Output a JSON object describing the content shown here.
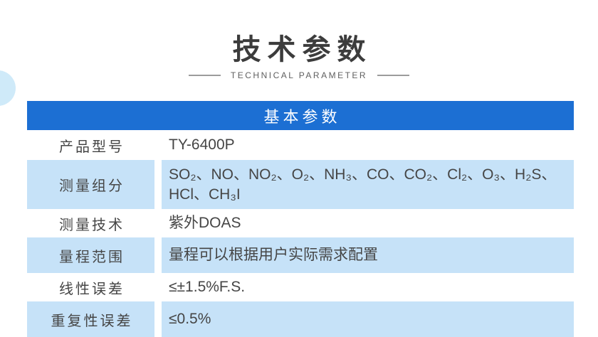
{
  "title": {
    "heading": "技术参数",
    "subheading": "TECHNICAL PARAMETER"
  },
  "section": {
    "header": "基本参数"
  },
  "table": {
    "rows": [
      {
        "label": "产品型号",
        "value": "TY-6400P"
      },
      {
        "label": "测量组分",
        "value": "SO₂、NO、NO₂、O₂、NH₃、CO、CO₂、Cl₂、O₃、H₂S、HCl、CH₃I"
      },
      {
        "label": "测量技术",
        "value": "紫外DOAS"
      },
      {
        "label": "量程范围",
        "value": "量程可以根据用户实际需求配置"
      },
      {
        "label": "线性误差",
        "value": "≤±1.5%F.S."
      },
      {
        "label": "重复性误差",
        "value": "≤0.5%"
      }
    ]
  },
  "colors": {
    "section_header_bg": "#1c6fd3",
    "row_highlight_bg": "#c6e2f8",
    "decor_circle": "#cfeaf9"
  }
}
